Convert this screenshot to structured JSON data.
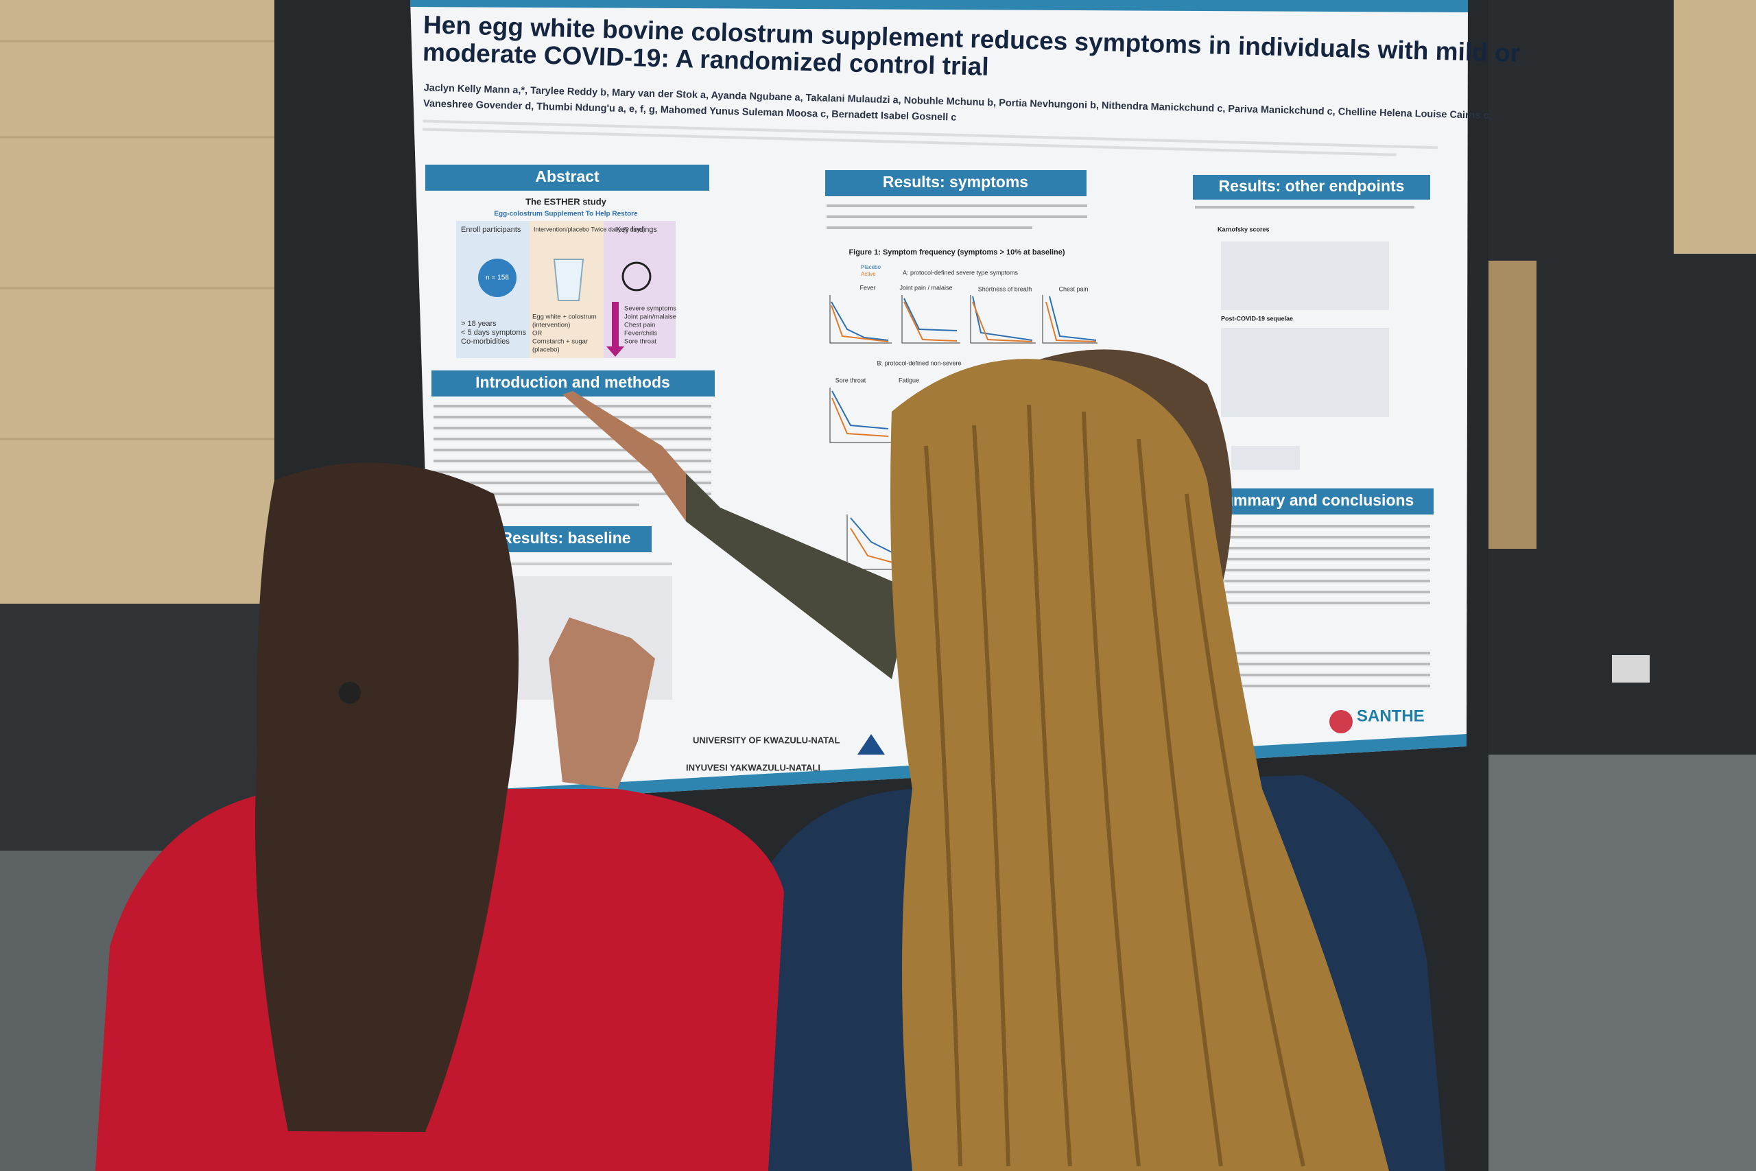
{
  "poster": {
    "title_lines": [
      "Hen egg white bovine colostrum supplement reduces symptoms in individuals with mild or",
      "moderate COVID-19: A randomized control trial"
    ],
    "author_lines": [
      "Jaclyn Kelly Mann a,*, Tarylee Reddy b, Mary van der Stok a, Ayanda Ngubane a, Takalani Mulaudzi a, Nobuhle Mchunu b, Portia Nevhungoni b, Nithendra Manickchund c, Pariva Manickchund c, Chelline Helena Louise Cairns c,",
      "Vaneshree Govender d, Thumbi Ndung'u a, e, f, g, Mahomed Yunus Suleman Moosa c, Bernadett Isabel Gosnell c"
    ],
    "sections": [
      "Abstract",
      "Results: symptoms",
      "Results: other endpoints",
      "Introduction and methods",
      "Results: baseline",
      "Summary and conclusions"
    ],
    "abstract": {
      "study": "The ESTHER study",
      "subtitle": "Egg-colostrum Supplement To Help Restore",
      "columns": [
        "Enroll participants",
        "Intervention/placebo Twice daily (5 days)",
        "Key findings"
      ],
      "sample": "n = 158",
      "criteria": [
        "> 18 years",
        "< 5 days symptoms",
        "Co-morbidities"
      ],
      "arms": [
        "Egg white + colostrum",
        "(intervention)",
        "OR",
        "Cornstarch + sugar",
        "(placebo)"
      ],
      "findings": [
        "Severe symptoms",
        "Joint pain/malaise",
        "Chest pain",
        "Fever/chills",
        "Sore throat"
      ]
    },
    "figure": {
      "caption": "Figure 1: Symptom frequency (symptoms > 10% at baseline)",
      "panel_a": "A: protocol-defined severe type symptoms",
      "panel_b": "B: protocol-defined non-severe",
      "panels": [
        "Fever",
        "Joint pain / malaise",
        "Shortness of breath",
        "Chest pain",
        "Sore throat",
        "Fatigue"
      ],
      "legend": [
        "Placebo",
        "Active"
      ]
    },
    "other": {
      "scores": "Karnofsky scores",
      "sequelae": "Post-COVID-19 sequelae"
    },
    "logos": [
      "UNIVERSITY OF KWAZULU-NATAL",
      "INYUVESI YAKWAZULU-NATALI",
      "SANTHE"
    ]
  }
}
